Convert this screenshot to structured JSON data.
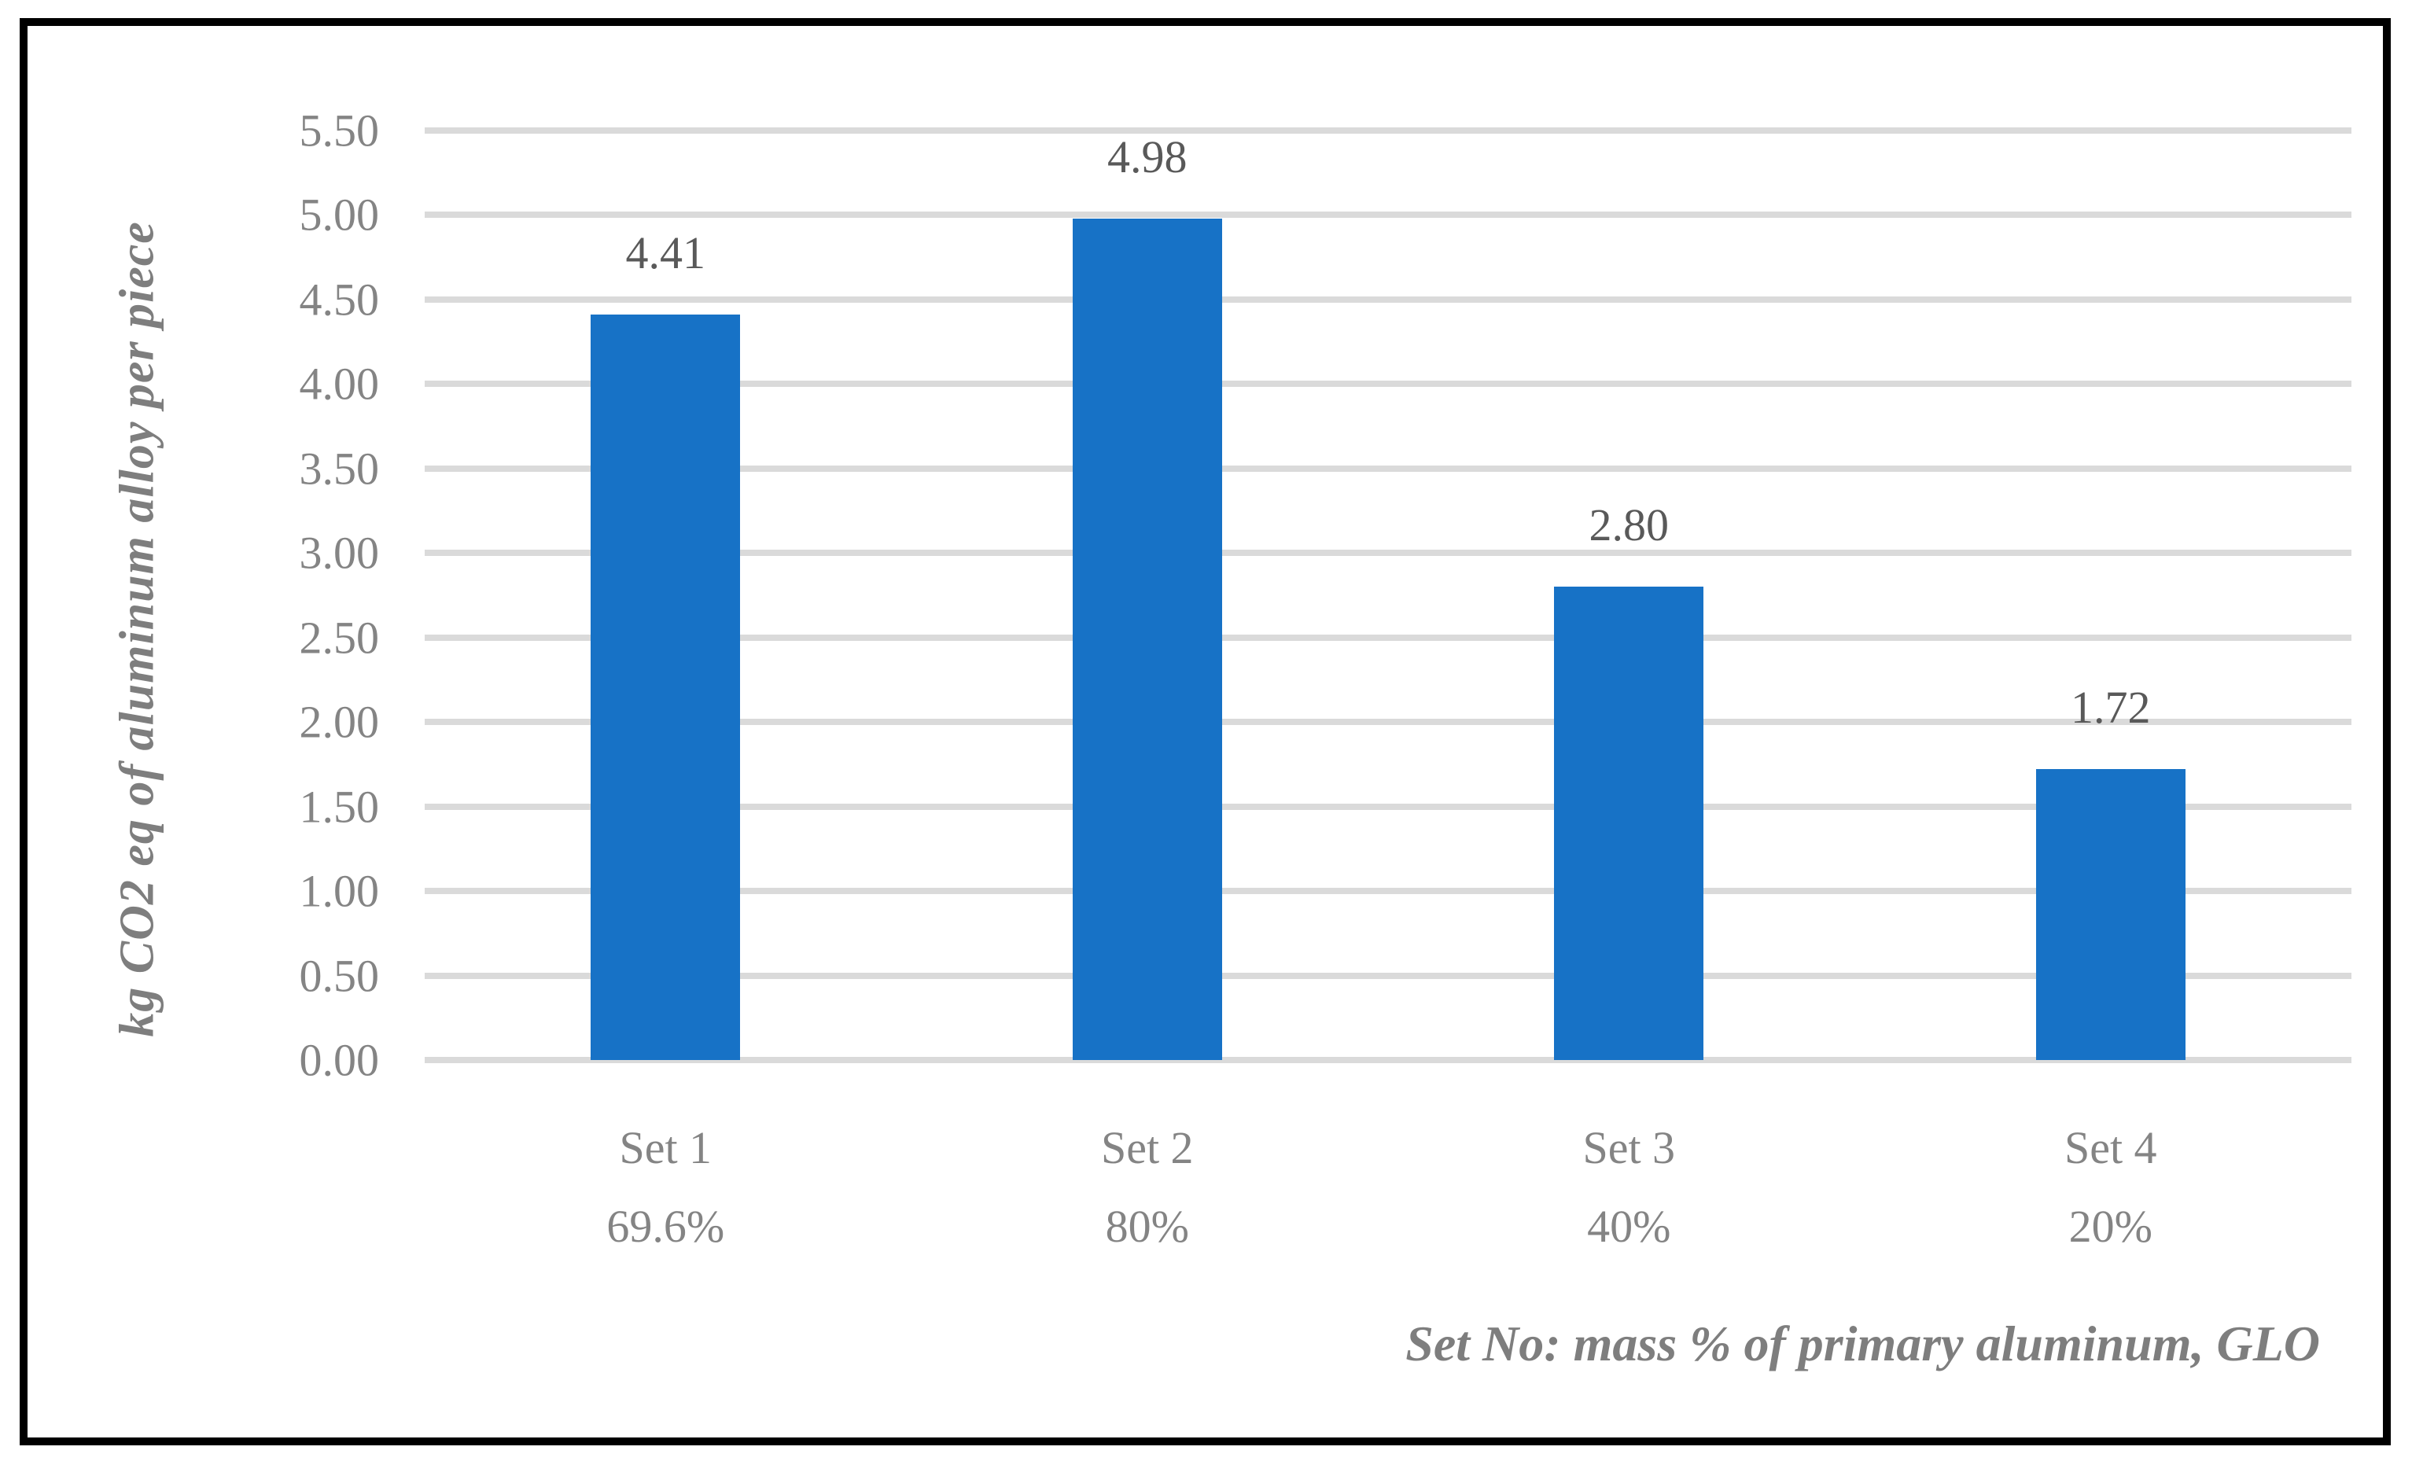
{
  "chart_data": {
    "type": "bar",
    "title": "",
    "categories": [
      "Set 1",
      "Set 2",
      "Set 3",
      "Set 4"
    ],
    "category_sublabels": [
      "69.6%",
      "80%",
      "40%",
      "20%"
    ],
    "values": [
      4.41,
      4.98,
      2.8,
      1.72
    ],
    "data_labels": [
      "4.41",
      "4.98",
      "2.80",
      "1.72"
    ],
    "ylabel": "kg CO2 eq of aluminum alloy per piece",
    "caption": "Set No: mass % of primary aluminum, GLO",
    "ylim": [
      0,
      5.5
    ],
    "ytick_step": 0.5,
    "yticks": [
      "0.00",
      "0.50",
      "1.00",
      "1.50",
      "2.00",
      "2.50",
      "3.00",
      "3.50",
      "4.00",
      "4.50",
      "5.00",
      "5.50"
    ],
    "grid": true,
    "legend_position": "none",
    "colors": {
      "bar": "#1772C6",
      "gridline": "#DADADA",
      "tick_label": "#848484",
      "data_label": "#595959",
      "axis_title": "#7E7E7E",
      "frame_border": "#000000"
    }
  }
}
